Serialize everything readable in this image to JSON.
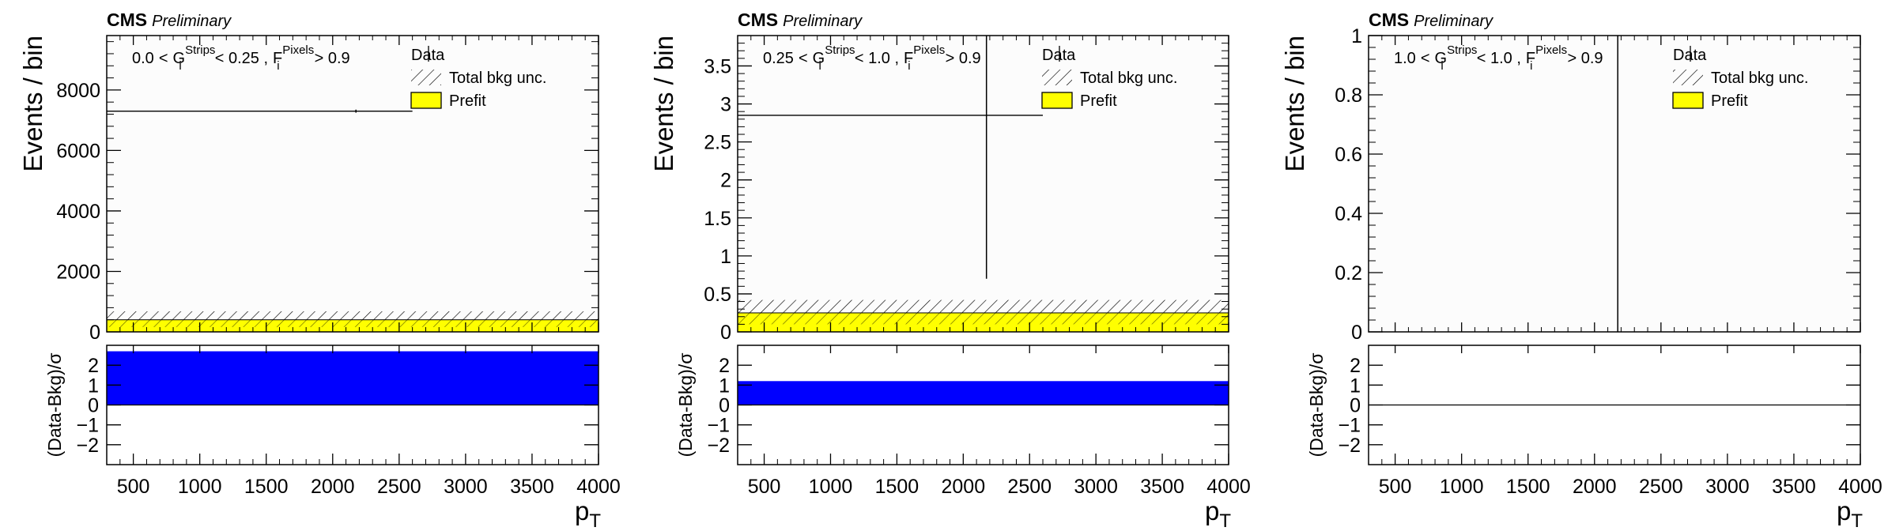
{
  "chart_data": [
    {
      "type": "bar",
      "cms_label": "CMS",
      "status_label": "Preliminary",
      "ylabel": "Events / bin",
      "ratio_ylabel": "(Data-Bkg)/σ",
      "xlabel": "p",
      "xlabel_sub": "T",
      "ylim": [
        0,
        9800
      ],
      "yticks": [
        0,
        2000,
        4000,
        6000,
        8000
      ],
      "ytick_labels": [
        "0",
        "2000",
        "4000",
        "6000",
        "8000"
      ],
      "xlim": [
        300,
        4000
      ],
      "xticks": [
        500,
        1000,
        1500,
        2000,
        2500,
        3000,
        3500,
        4000
      ],
      "xtick_labels": [
        "500",
        "1000",
        "1500",
        "2000",
        "2500",
        "3000",
        "3500",
        "4000"
      ],
      "ratio_ylim": [
        -3,
        3
      ],
      "ratio_yticks": [
        -2,
        -1,
        0,
        1,
        2
      ],
      "ratio_ytick_labels": [
        "−2",
        "−1",
        "0",
        "1",
        "2"
      ],
      "selection": {
        "lo": "0.0",
        "g_sym": "G",
        "g_sub": "i",
        "g_sup": "Strips",
        "hi": "< 0.25 ,",
        "f_sym": "F",
        "f_sub": "i",
        "f_sup": "Pixels",
        "cut": "> 0.9"
      },
      "legend": {
        "data": "Data",
        "unc": "Total bkg unc.",
        "prefit": "Prefit",
        "placement": "top-right"
      },
      "prefit": 400,
      "unc_band": [
        160,
        680
      ],
      "data_line": {
        "y": 7300,
        "x_end": 2600
      },
      "data_point": {
        "x": 2175,
        "y": 7300,
        "ylo": 7250,
        "yhi": 7350
      },
      "pull": 2.7
    },
    {
      "type": "bar",
      "cms_label": "CMS",
      "status_label": "Preliminary",
      "ylabel": "Events / bin",
      "ratio_ylabel": "(Data-Bkg)/σ",
      "xlabel": "p",
      "xlabel_sub": "T",
      "ylim": [
        0,
        3.9
      ],
      "yticks": [
        0,
        0.5,
        1,
        1.5,
        2,
        2.5,
        3,
        3.5
      ],
      "ytick_labels": [
        "0",
        "0.5",
        "1",
        "1.5",
        "2",
        "2.5",
        "3",
        "3.5"
      ],
      "xlim": [
        300,
        4000
      ],
      "xticks": [
        500,
        1000,
        1500,
        2000,
        2500,
        3000,
        3500,
        4000
      ],
      "xtick_labels": [
        "500",
        "1000",
        "1500",
        "2000",
        "2500",
        "3000",
        "3500",
        "4000"
      ],
      "ratio_ylim": [
        -3,
        3
      ],
      "ratio_yticks": [
        -2,
        -1,
        0,
        1,
        2
      ],
      "ratio_ytick_labels": [
        "−2",
        "−1",
        "0",
        "1",
        "2"
      ],
      "selection": {
        "lo": "0.25",
        "g_sym": "G",
        "g_sub": "i",
        "g_sup": "Strips",
        "hi": "< 1.0 ,",
        "f_sym": "F",
        "f_sub": "i",
        "f_sup": "Pixels",
        "cut": "> 0.9"
      },
      "legend": {
        "data": "Data",
        "unc": "Total bkg unc.",
        "prefit": "Prefit",
        "placement": "top-right"
      },
      "prefit": 0.25,
      "unc_band": [
        0.1,
        0.42
      ],
      "data_line": {
        "y": 2.85,
        "x_end": 2600
      },
      "data_point": {
        "x": 2175,
        "y": 2.85,
        "ylo": 0.7,
        "yhi": 3.9
      },
      "pull": 1.2
    },
    {
      "type": "bar",
      "cms_label": "CMS",
      "status_label": "Preliminary",
      "ylabel": "Events / bin",
      "ratio_ylabel": "(Data-Bkg)/σ",
      "xlabel": "p",
      "xlabel_sub": "T",
      "ylim": [
        0,
        1
      ],
      "yticks": [
        0,
        0.2,
        0.4,
        0.6,
        0.8,
        1
      ],
      "ytick_labels": [
        "0",
        "0.2",
        "0.4",
        "0.6",
        "0.8",
        "1"
      ],
      "xlim": [
        300,
        4000
      ],
      "xticks": [
        500,
        1000,
        1500,
        2000,
        2500,
        3000,
        3500,
        4000
      ],
      "xtick_labels": [
        "500",
        "1000",
        "1500",
        "2000",
        "2500",
        "3000",
        "3500",
        "4000"
      ],
      "ratio_ylim": [
        -3,
        3
      ],
      "ratio_yticks": [
        -2,
        -1,
        0,
        1,
        2
      ],
      "ratio_ytick_labels": [
        "−2",
        "−1",
        "0",
        "1",
        "2"
      ],
      "selection": {
        "lo": "1.0",
        "g_sym": "G",
        "g_sub": "i",
        "g_sup": "Strips",
        "hi": "< 1.0 ,",
        "f_sym": "F",
        "f_sub": "i",
        "f_sup": "Pixels",
        "cut": "> 0.9"
      },
      "legend": {
        "data": "Data",
        "unc": "Total bkg unc.",
        "prefit": "Prefit",
        "placement": "top-right"
      },
      "prefit": 0,
      "unc_band": [
        0,
        0
      ],
      "data_line": null,
      "data_point": {
        "x": 2175,
        "y": 0,
        "ylo": 0,
        "yhi": 1
      },
      "pull": 0
    }
  ],
  "colors": {
    "prefit_fill": "#ffff00",
    "pull_fill": "#0000ff",
    "axis": "#000000",
    "plot_bg": "#fcfcfc"
  }
}
